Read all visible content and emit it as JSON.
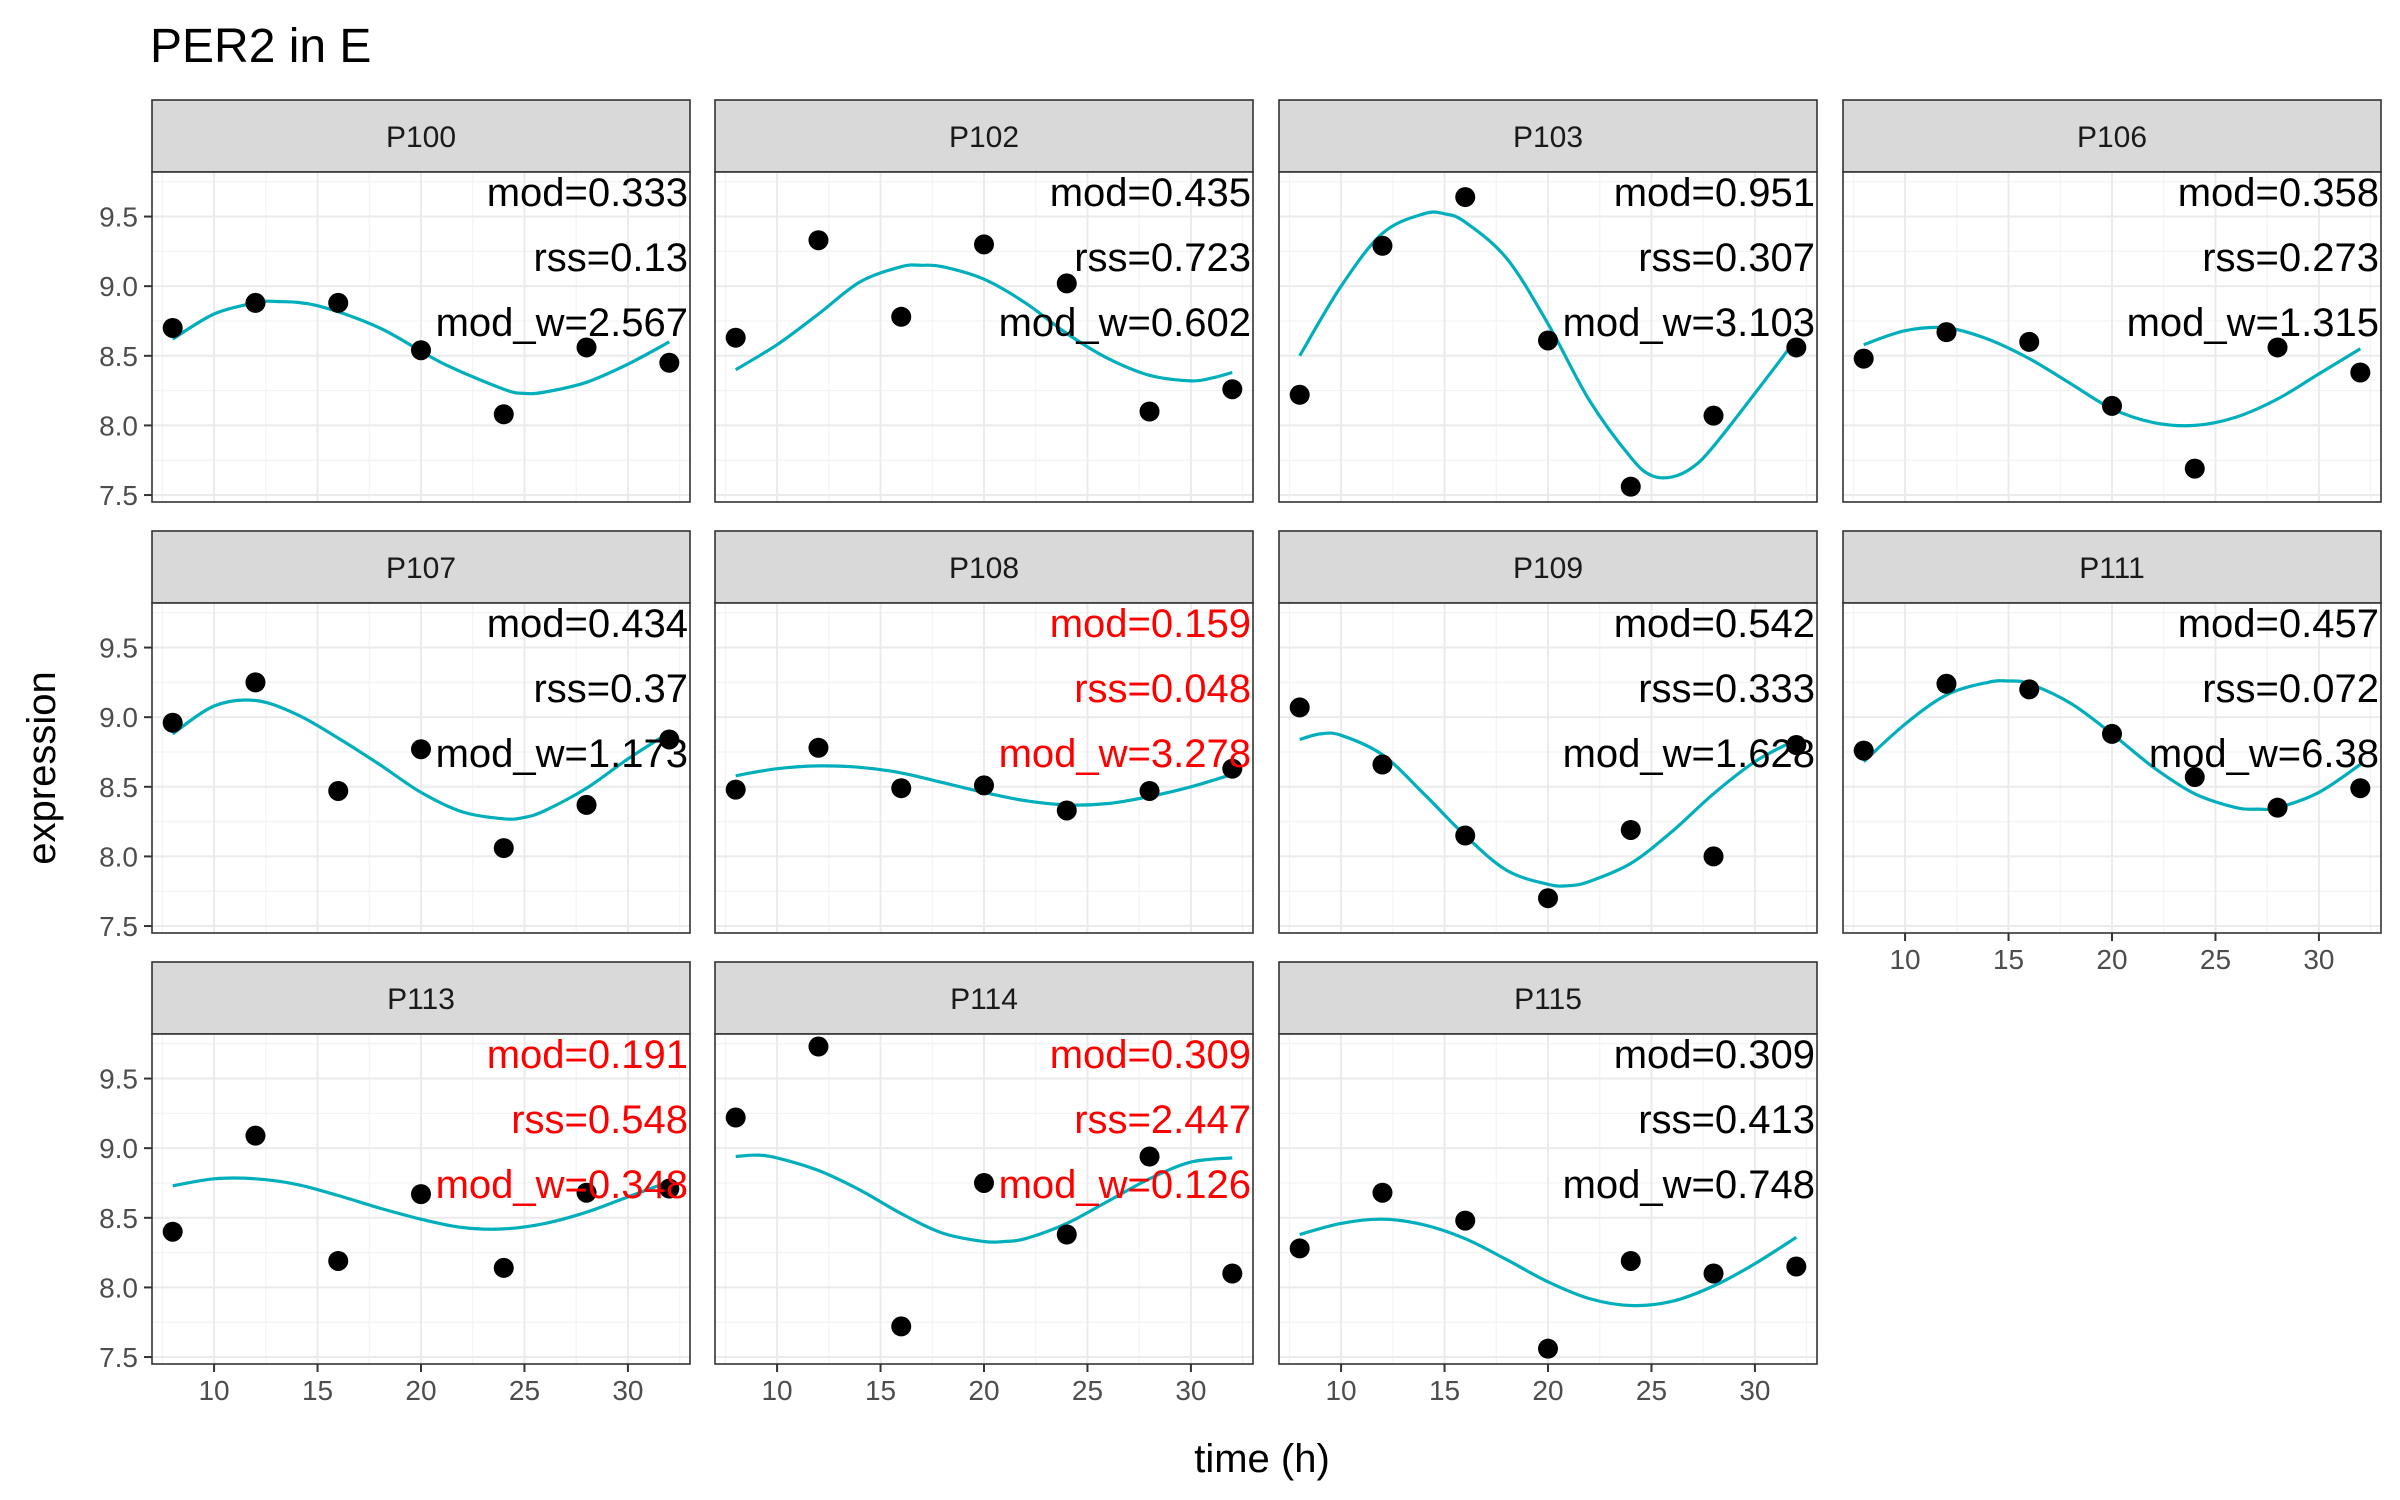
{
  "colors": {
    "fit_line": "#00AFBB",
    "point": "#000000",
    "annotation_ok": "#000000",
    "annotation_flagged": "#FF0000"
  },
  "chart_data": {
    "type": "scatter",
    "title": "PER2 in E",
    "xlabel": "time (h)",
    "ylabel": "expression",
    "xlim": [
      7,
      33
    ],
    "ylim": [
      7.45,
      9.82
    ],
    "x_ticks": [
      10,
      15,
      20,
      25,
      30
    ],
    "y_ticks": [
      7.5,
      8.0,
      8.5,
      9.0,
      9.5
    ],
    "x_tick_labels": [
      "10",
      "15",
      "20",
      "25",
      "30"
    ],
    "y_tick_labels": [
      "7.5",
      "8.0",
      "8.5",
      "9.0",
      "9.5"
    ],
    "grid": true,
    "layout": "facet_wrap, 4 columns",
    "panels": [
      {
        "name": "P100",
        "flagged": false,
        "annotations": [
          "mod=0.333",
          "rss=0.13",
          "mod_w=2.567"
        ],
        "points": {
          "x": [
            8,
            12,
            16,
            20,
            24,
            28,
            32
          ],
          "y": [
            8.7,
            8.88,
            8.88,
            8.54,
            8.08,
            8.56,
            8.45
          ]
        },
        "fit": {
          "x": [
            8,
            10,
            12,
            13,
            15,
            18,
            21,
            24,
            25,
            26,
            28,
            30,
            32
          ],
          "y": [
            8.62,
            8.8,
            8.88,
            8.89,
            8.86,
            8.7,
            8.45,
            8.26,
            8.23,
            8.24,
            8.31,
            8.44,
            8.6
          ]
        }
      },
      {
        "name": "P102",
        "flagged": false,
        "annotations": [
          "mod=0.435",
          "rss=0.723",
          "mod_w=0.602"
        ],
        "points": {
          "x": [
            8,
            12,
            16,
            20,
            24,
            28,
            32
          ],
          "y": [
            8.63,
            9.33,
            8.78,
            9.3,
            9.02,
            8.1,
            8.26
          ]
        },
        "fit": {
          "x": [
            8,
            10,
            12,
            14,
            16,
            17,
            18,
            20,
            22,
            24,
            26,
            28,
            30,
            31,
            32
          ],
          "y": [
            8.4,
            8.58,
            8.8,
            9.03,
            9.14,
            9.15,
            9.14,
            9.05,
            8.88,
            8.66,
            8.48,
            8.36,
            8.32,
            8.34,
            8.38
          ]
        }
      },
      {
        "name": "P103",
        "flagged": false,
        "annotations": [
          "mod=0.951",
          "rss=0.307",
          "mod_w=3.103"
        ],
        "points": {
          "x": [
            8,
            12,
            16,
            20,
            24,
            28,
            32
          ],
          "y": [
            8.22,
            9.29,
            9.64,
            8.61,
            7.56,
            8.07,
            8.56
          ]
        },
        "fit": {
          "x": [
            8,
            10,
            12,
            14,
            15,
            16,
            18,
            20,
            22,
            24,
            25,
            26,
            27,
            28,
            30,
            32
          ],
          "y": [
            8.5,
            9.0,
            9.38,
            9.52,
            9.52,
            9.46,
            9.2,
            8.73,
            8.18,
            7.77,
            7.64,
            7.63,
            7.7,
            7.85,
            8.23,
            8.62
          ]
        }
      },
      {
        "name": "P106",
        "flagged": false,
        "annotations": [
          "mod=0.358",
          "rss=0.273",
          "mod_w=1.315"
        ],
        "points": {
          "x": [
            8,
            12,
            16,
            20,
            24,
            28,
            32
          ],
          "y": [
            8.48,
            8.67,
            8.6,
            8.14,
            7.69,
            8.56,
            8.38
          ]
        },
        "fit": {
          "x": [
            8,
            10,
            12,
            14,
            16,
            18,
            20,
            22,
            24,
            26,
            28,
            30,
            32
          ],
          "y": [
            8.58,
            8.68,
            8.7,
            8.62,
            8.48,
            8.3,
            8.12,
            8.02,
            8.0,
            8.06,
            8.19,
            8.37,
            8.55
          ]
        }
      },
      {
        "name": "P107",
        "flagged": false,
        "annotations": [
          "mod=0.434",
          "rss=0.37",
          "mod_w=1.173"
        ],
        "points": {
          "x": [
            8,
            12,
            16,
            20,
            24,
            28,
            32
          ],
          "y": [
            8.96,
            9.25,
            8.47,
            8.77,
            8.06,
            8.37,
            8.84
          ]
        },
        "fit": {
          "x": [
            8,
            10,
            12,
            14,
            16,
            18,
            20,
            22,
            24,
            25,
            26,
            28,
            30,
            32
          ],
          "y": [
            8.88,
            9.08,
            9.12,
            9.02,
            8.85,
            8.66,
            8.46,
            8.32,
            8.27,
            8.28,
            8.33,
            8.49,
            8.7,
            8.89
          ]
        }
      },
      {
        "name": "P108",
        "flagged": true,
        "annotations": [
          "mod=0.159",
          "rss=0.048",
          "mod_w=3.278"
        ],
        "points": {
          "x": [
            8,
            12,
            16,
            20,
            24,
            28,
            32
          ],
          "y": [
            8.48,
            8.78,
            8.49,
            8.51,
            8.33,
            8.47,
            8.63
          ]
        },
        "fit": {
          "x": [
            8,
            10,
            12,
            14,
            16,
            18,
            20,
            22,
            24,
            26,
            28,
            30,
            32
          ],
          "y": [
            8.58,
            8.63,
            8.65,
            8.64,
            8.6,
            8.53,
            8.46,
            8.4,
            8.37,
            8.38,
            8.43,
            8.5,
            8.59
          ]
        }
      },
      {
        "name": "P109",
        "flagged": false,
        "annotations": [
          "mod=0.542",
          "rss=0.333",
          "mod_w=1.628"
        ],
        "points": {
          "x": [
            8,
            12,
            16,
            20,
            24,
            28,
            32
          ],
          "y": [
            9.07,
            8.66,
            8.15,
            7.7,
            8.19,
            8.0,
            8.8
          ]
        },
        "fit": {
          "x": [
            8,
            9,
            10,
            12,
            14,
            16,
            18,
            20,
            21,
            22,
            24,
            26,
            28,
            30,
            32
          ],
          "y": [
            8.84,
            8.88,
            8.87,
            8.73,
            8.45,
            8.15,
            7.9,
            7.8,
            7.79,
            7.82,
            7.95,
            8.18,
            8.45,
            8.68,
            8.84
          ]
        }
      },
      {
        "name": "P111",
        "flagged": false,
        "annotations": [
          "mod=0.457",
          "rss=0.072",
          "mod_w=6.38"
        ],
        "points": {
          "x": [
            8,
            12,
            16,
            20,
            24,
            28,
            32
          ],
          "y": [
            8.76,
            9.24,
            9.2,
            8.88,
            8.57,
            8.35,
            8.49
          ]
        },
        "fit": {
          "x": [
            8,
            10,
            12,
            14,
            15,
            16,
            18,
            20,
            22,
            24,
            26,
            27,
            28,
            30,
            32
          ],
          "y": [
            8.68,
            8.95,
            9.16,
            9.25,
            9.26,
            9.24,
            9.1,
            8.88,
            8.64,
            8.45,
            8.35,
            8.34,
            8.35,
            8.46,
            8.66
          ]
        }
      },
      {
        "name": "P113",
        "flagged": true,
        "annotations": [
          "mod=0.191",
          "rss=0.548",
          "mod_w=0.348"
        ],
        "points": {
          "x": [
            8,
            12,
            16,
            20,
            24,
            28,
            32
          ],
          "y": [
            8.4,
            9.09,
            8.19,
            8.67,
            8.14,
            8.68,
            8.71
          ]
        },
        "fit": {
          "x": [
            8,
            10,
            12,
            14,
            16,
            18,
            20,
            22,
            24,
            26,
            28,
            30,
            32
          ],
          "y": [
            8.73,
            8.78,
            8.78,
            8.74,
            8.66,
            8.57,
            8.49,
            8.43,
            8.42,
            8.46,
            8.54,
            8.65,
            8.76
          ]
        }
      },
      {
        "name": "P114",
        "flagged": true,
        "annotations": [
          "mod=0.309",
          "rss=2.447",
          "mod_w=0.126"
        ],
        "points": {
          "x": [
            8,
            12,
            16,
            20,
            24,
            28,
            32
          ],
          "y": [
            9.22,
            9.73,
            7.72,
            8.75,
            8.38,
            8.94,
            8.1
          ]
        },
        "fit": {
          "x": [
            8,
            9,
            10,
            12,
            14,
            16,
            18,
            20,
            21,
            22,
            24,
            26,
            28,
            30,
            32
          ],
          "y": [
            8.94,
            8.95,
            8.93,
            8.84,
            8.7,
            8.53,
            8.39,
            8.33,
            8.33,
            8.35,
            8.46,
            8.62,
            8.78,
            8.9,
            8.93
          ]
        }
      },
      {
        "name": "P115",
        "flagged": false,
        "annotations": [
          "mod=0.309",
          "rss=0.413",
          "mod_w=0.748"
        ],
        "points": {
          "x": [
            8,
            12,
            16,
            20,
            24,
            28,
            32
          ],
          "y": [
            8.28,
            8.68,
            8.48,
            7.56,
            8.19,
            8.1,
            8.15
          ]
        },
        "fit": {
          "x": [
            8,
            10,
            12,
            14,
            16,
            18,
            20,
            22,
            24,
            26,
            28,
            30,
            32
          ],
          "y": [
            8.38,
            8.46,
            8.49,
            8.45,
            8.35,
            8.2,
            8.04,
            7.92,
            7.87,
            7.9,
            8.01,
            8.17,
            8.36
          ]
        }
      }
    ]
  }
}
